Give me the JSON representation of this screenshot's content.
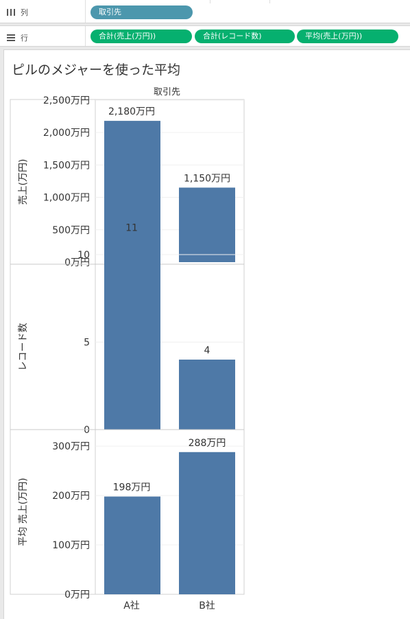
{
  "shelves": {
    "columns": {
      "icon": "columns-icon",
      "label": "列",
      "pills": [
        {
          "label": "取引先",
          "kind": "dimension"
        }
      ]
    },
    "rows": {
      "icon": "rows-icon",
      "label": "行",
      "pills": [
        {
          "label": "合計(売上(万円))",
          "kind": "measure"
        },
        {
          "label": "合計(レコード数)",
          "kind": "measure"
        },
        {
          "label": "平均(売上(万円))",
          "kind": "measure"
        }
      ]
    }
  },
  "sheet": {
    "title": "ピルのメジャーを使った平均",
    "column_header": "取引先"
  },
  "colors": {
    "bar": "#4e79a7",
    "dimension_pill": "#4c97ad",
    "measure_pill": "#06b06f"
  },
  "chart_data": {
    "type": "bar",
    "categories": [
      "A社",
      "B社"
    ],
    "panes": [
      {
        "ylabel": "売上(万円)",
        "values": [
          2180,
          1150
        ],
        "value_labels": [
          "2,180万円",
          "1,150万円"
        ],
        "ticks": [
          0,
          500,
          1000,
          1500,
          2000,
          2500
        ],
        "tick_labels": [
          "0万円",
          "500万円",
          "1,000万円",
          "1,500万円",
          "2,000万円",
          "2,500万円"
        ],
        "ylim": [
          0,
          2500
        ]
      },
      {
        "ylabel": "レコード数",
        "values": [
          11,
          4
        ],
        "value_labels": [
          "11",
          "4"
        ],
        "ticks": [
          0,
          5,
          10
        ],
        "tick_labels": [
          "0",
          "5",
          "10"
        ],
        "ylim": [
          0,
          12.3
        ]
      },
      {
        "ylabel": "平均 売上(万円)",
        "values": [
          198,
          288
        ],
        "value_labels": [
          "198万円",
          "288万円"
        ],
        "ticks": [
          0,
          100,
          200,
          300
        ],
        "tick_labels": [
          "0万円",
          "100万円",
          "200万円",
          "300万円"
        ],
        "ylim": [
          0,
          300
        ]
      }
    ]
  }
}
